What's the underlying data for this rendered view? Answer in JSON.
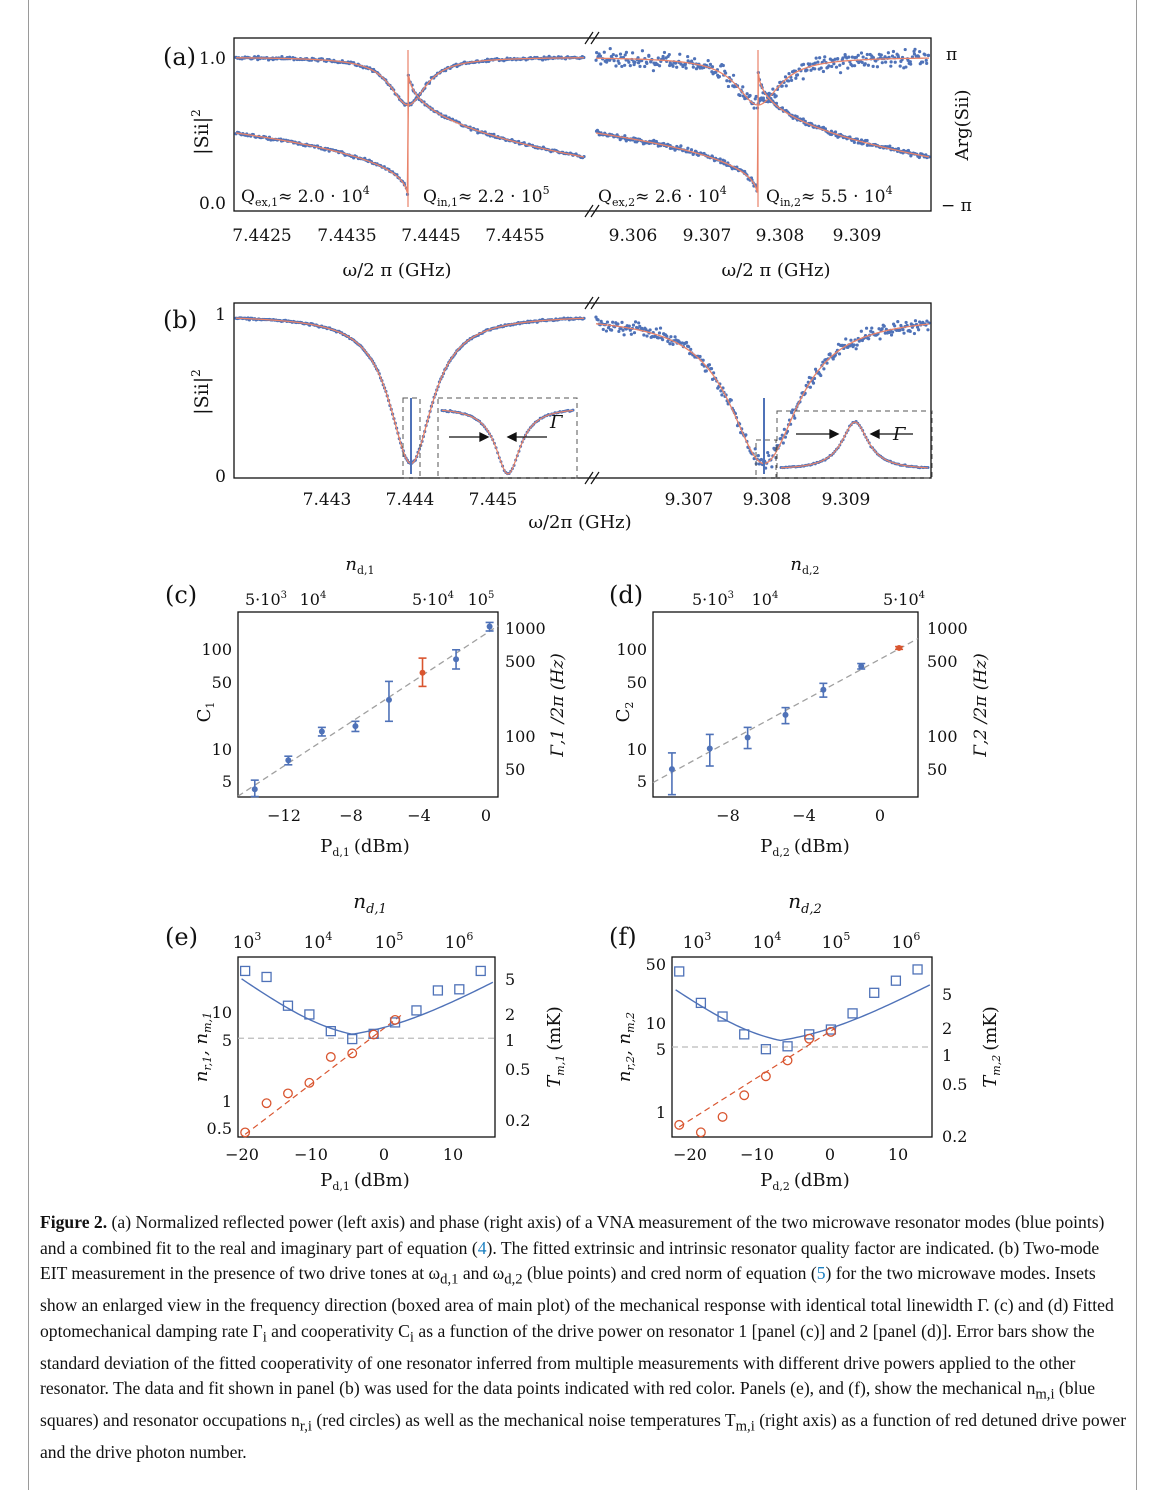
{
  "figure": {
    "colors": {
      "data": "#4f72b8",
      "fit": "#e8836a",
      "red_point": "#d9552f",
      "dashed": "#a0a0a0"
    },
    "panel_a": {
      "label": "(a)",
      "yleft_label": "|Sii|",
      "yleft_sup": "2",
      "yright_label": "Arg(Sii)",
      "yleft_ticks": [
        "1.0",
        "0.0"
      ],
      "yright_ticks": [
        "π",
        "− π"
      ],
      "x_left_ticks": [
        "7.4425",
        "7.4435",
        "7.4445",
        "7.4455"
      ],
      "x_right_ticks": [
        "9.306",
        "9.307",
        "9.308",
        "9.309"
      ],
      "xlabel": "ω/2 π (GHz)",
      "q_labels": [
        "Q",
        "Q",
        "Q",
        "Q"
      ],
      "q_subs": [
        "ex,1",
        "in,1",
        "ex,2",
        "in,2"
      ],
      "q_values": [
        "≈ 2.0 · 10",
        "≈ 2.2 · 10",
        "≈ 2.6 · 10",
        "≈ 5.5 · 10"
      ],
      "q_exps": [
        "4",
        "5",
        "4",
        "4"
      ]
    },
    "panel_b": {
      "label": "(b)",
      "yleft_label": "|Sii|",
      "yleft_sup": "2",
      "yticks": [
        "1",
        "0"
      ],
      "x_left_ticks": [
        "7.443",
        "7.444",
        "7.445"
      ],
      "x_right_ticks": [
        "9.307",
        "9.308",
        "9.309"
      ],
      "xlabel": "ω/2π (GHz)",
      "gamma_label": "Γ"
    },
    "panel_c": {
      "label": "(c)",
      "top_label": "n",
      "top_sub": "d,1",
      "top_ticks": [
        "5·10",
        "10",
        "5·10",
        "10"
      ],
      "top_exps": [
        "3",
        "4",
        "4",
        "5"
      ],
      "ylabel": "C",
      "ylabel_sub": "1",
      "yticks": [
        "100",
        "50",
        "10",
        "5"
      ],
      "yright_label": "Γ,1 /2π (Hz)",
      "yright_ticks": [
        "1000",
        "500",
        "100",
        "50"
      ],
      "xticks": [
        "−12",
        "−8",
        "−4",
        "0"
      ],
      "xlabel": "P",
      "xlabel_sub": "d,1",
      "xlabel_unit": "(dBm)",
      "chart_data": {
        "type": "scatter",
        "x": [
          -14,
          -12,
          -10,
          -8,
          -6,
          -4,
          -2,
          0
        ],
        "y": [
          4.5,
          8.5,
          16,
          18,
          32,
          58,
          78,
          160
        ],
        "yerr_low": [
          1,
          0.8,
          1.5,
          2,
          12,
          15,
          15,
          15
        ],
        "yerr_high": [
          1,
          0.8,
          1.5,
          2,
          16,
          22,
          18,
          15
        ],
        "highlight_index": 5,
        "xlim": [
          -15,
          0.5
        ],
        "ylim": [
          3.8,
          220
        ],
        "yscale": "log"
      }
    },
    "panel_d": {
      "label": "(d)",
      "top_label": "n",
      "top_sub": "d,2",
      "top_ticks": [
        "5·10",
        "10",
        "5·10"
      ],
      "top_exps": [
        "3",
        "4",
        "4"
      ],
      "ylabel": "C",
      "ylabel_sub": "2",
      "yticks": [
        "100",
        "50",
        "10",
        "5"
      ],
      "yright_label": "Γ,2 /2π (Hz)",
      "yright_ticks": [
        "1000",
        "500",
        "100",
        "50"
      ],
      "xticks": [
        "−8",
        "−4",
        "0"
      ],
      "xlabel": "P",
      "xlabel_sub": "d,2",
      "xlabel_unit": "(dBm)",
      "chart_data": {
        "type": "scatter",
        "x": [
          -10,
          -8,
          -6,
          -4,
          -2,
          0,
          2
        ],
        "y": [
          7,
          11,
          14,
          23,
          40,
          67,
          100
        ],
        "yerr_low": [
          3,
          3.5,
          3,
          4,
          6,
          4,
          3
        ],
        "yerr_high": [
          3,
          4,
          3.5,
          4,
          6,
          4,
          3
        ],
        "highlight_index": 6,
        "xlim": [
          -11,
          3
        ],
        "ylim": [
          3.8,
          220
        ],
        "yscale": "log"
      }
    },
    "panel_e": {
      "label": "(e)",
      "top_label": "n",
      "top_sub": "d,1",
      "top_ticks": [
        "10",
        "10",
        "10",
        "10"
      ],
      "top_exps": [
        "3",
        "4",
        "5",
        "6"
      ],
      "ylabel": "n",
      "ylabel_sub": "r,1",
      "ylabel_mid": ", n",
      "ylabel_sub2": "m,1",
      "yticks": [
        "10",
        "5",
        "1",
        "0.5"
      ],
      "yright_label": "T",
      "yright_sub": "m,1",
      "yright_unit": "(mK)",
      "yright_ticks": [
        "5",
        "2",
        "1",
        "0.5",
        "0.2"
      ],
      "xticks": [
        "−20",
        "−10",
        "0",
        "10"
      ],
      "xlabel": "P",
      "xlabel_sub": "d,1",
      "xlabel_unit": "(dBm)",
      "chart_data": {
        "type": "scatter",
        "series": [
          {
            "name": "mechanical",
            "x": [
              -20,
              -17,
              -14,
              -11,
              -8,
              -5,
              -2,
              1,
              4,
              7,
              10,
              13
            ],
            "y": [
              28,
              24,
              11.5,
              9.2,
              6,
              4.9,
              5.6,
              7.5,
              10.2,
              17,
              17.5,
              28
            ]
          },
          {
            "name": "resonator",
            "x": [
              -20,
              -17,
              -14,
              -11,
              -8,
              -5,
              -2,
              1
            ],
            "y": [
              0.45,
              0.95,
              1.22,
              1.6,
              3.1,
              3.4,
              5.5,
              8
            ]
          }
        ],
        "xlim": [
          -21,
          15
        ],
        "ylim": [
          0.4,
          40
        ],
        "yscale": "log"
      }
    },
    "panel_f": {
      "label": "(f)",
      "top_label": "n",
      "top_sub": "d,2",
      "top_ticks": [
        "10",
        "10",
        "10",
        "10"
      ],
      "top_exps": [
        "3",
        "4",
        "5",
        "6"
      ],
      "ylabel": "n",
      "ylabel_sub": "r,2",
      "ylabel_mid": ", n",
      "ylabel_sub2": "m,2",
      "yticks": [
        "50",
        "10",
        "5",
        "1"
      ],
      "yright_label": "T",
      "yright_sub": "m,2",
      "yright_unit": "(mK)",
      "yright_ticks": [
        "5",
        "2",
        "1",
        "0.5",
        "0.2"
      ],
      "xticks": [
        "−20",
        "−10",
        "0",
        "10"
      ],
      "xlabel": "P",
      "xlabel_sub": "d,2",
      "xlabel_unit": "(dBm)",
      "chart_data": {
        "type": "scatter",
        "series": [
          {
            "name": "mechanical",
            "x": [
              -20,
              -17,
              -14,
              -11,
              -8,
              -5,
              -2,
              1,
              4,
              7,
              10,
              13
            ],
            "y": [
              38,
              17,
              12,
              7.6,
              5.2,
              5.6,
              7.6,
              8.6,
              13,
              22,
              30,
              40
            ]
          },
          {
            "name": "resonator",
            "x": [
              -20,
              -17,
              -14,
              -11,
              -8,
              -5,
              -2,
              1
            ],
            "y": [
              0.75,
              0.62,
              0.92,
              1.6,
              2.6,
              3.9,
              6.8,
              8.1
            ]
          }
        ],
        "xlim": [
          -21,
          15
        ],
        "ylim": [
          0.55,
          55
        ],
        "yscale": "log"
      }
    }
  },
  "caption": {
    "fig_label": "Figure 2.",
    "text1": " (a) Normalized reflected power (left axis) and phase (right axis) of a VNA measurement of the two microwave resonator modes (blue points) and a combined fit to the real and imaginary part of equation (",
    "ref1": "4",
    "text2": "). The fitted extrinsic and intrinsic resonator quality factor are indicated. (b) Two-mode EIT measurement in the presence of two drive tones at ω",
    "sub_d1": "d,1",
    "text3": " and ω",
    "sub_d2": "d,2",
    "text4": " (blue points) and cred norm of equation (",
    "ref2": "5",
    "text5": ") for the two microwave modes. Insets show an enlarged view in the frequency direction (boxed area of main plot) of the mechanical response with identical total linewidth Γ. (c) and (d) Fitted optomechanical damping rate Γ",
    "sub_i1": "i",
    "text6": " and cooperativity C",
    "sub_i2": "i",
    "text7": " as a function of the drive power on resonator 1 [panel (c)] and 2 [panel (d)]. Error bars show the standard deviation of the fitted cooperativity of one resonator inferred from multiple measurements with different drive powers applied to the other resonator. The data and fit shown in panel (b) was used for the data points indicated with red color. Panels (e), and (f), show the mechanical n",
    "sub_mi": "m,i",
    "text8": " (blue squares) and resonator occupations n",
    "sub_ri": "r,i",
    "text9": " (red circles) as well as the mechanical noise temperatures T",
    "sub_Tmi": "m,i",
    "text10": " (right axis) as a function of red detuned drive power and the drive photon number."
  }
}
